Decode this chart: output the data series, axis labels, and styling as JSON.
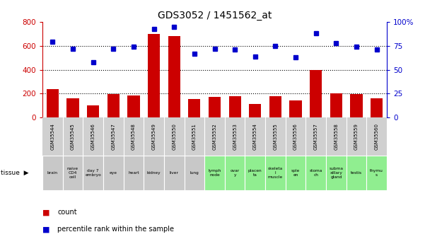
{
  "title": "GDS3052 / 1451562_at",
  "gsm_labels": [
    "GSM35544",
    "GSM35545",
    "GSM35546",
    "GSM35547",
    "GSM35548",
    "GSM35549",
    "GSM35550",
    "GSM35551",
    "GSM35552",
    "GSM35553",
    "GSM35554",
    "GSM35555",
    "GSM35556",
    "GSM35557",
    "GSM35558",
    "GSM35559",
    "GSM35560"
  ],
  "tissue_labels": [
    "brain",
    "naive\nCD4\ncell",
    "day 7\nembryо",
    "eye",
    "heart",
    "kidney",
    "liver",
    "lung",
    "lymph\nnode",
    "ovar\ny",
    "placen\nta",
    "skeleta\nl\nmuscle",
    "sple\nen",
    "stoma\nch",
    "subma\nxillary\ngland",
    "testis",
    "thymu\ns"
  ],
  "tissue_colors": [
    "#c8c8c8",
    "#c8c8c8",
    "#c8c8c8",
    "#c8c8c8",
    "#c8c8c8",
    "#c8c8c8",
    "#c8c8c8",
    "#c8c8c8",
    "#90ee90",
    "#90ee90",
    "#90ee90",
    "#90ee90",
    "#90ee90",
    "#90ee90",
    "#90ee90",
    "#90ee90",
    "#90ee90"
  ],
  "gsm_bg_color": "#d0d0d0",
  "counts": [
    240,
    160,
    105,
    195,
    185,
    700,
    680,
    155,
    175,
    180,
    115,
    180,
    145,
    400,
    200,
    195,
    160
  ],
  "percentiles": [
    79,
    72,
    58,
    72,
    74,
    93,
    95,
    67,
    72,
    71,
    64,
    75,
    63,
    88,
    78,
    74,
    71
  ],
  "bar_color": "#cc0000",
  "dot_color": "#0000cc",
  "left_ylim": [
    0,
    800
  ],
  "right_ylim": [
    0,
    100
  ],
  "left_yticks": [
    0,
    200,
    400,
    600,
    800
  ],
  "right_yticks": [
    0,
    25,
    50,
    75,
    100
  ],
  "grid_lines": [
    200,
    400,
    600
  ],
  "background_color": "#ffffff",
  "tick_label_color_left": "#cc0000",
  "tick_label_color_right": "#0000cc",
  "plot_bg": "#ffffff"
}
